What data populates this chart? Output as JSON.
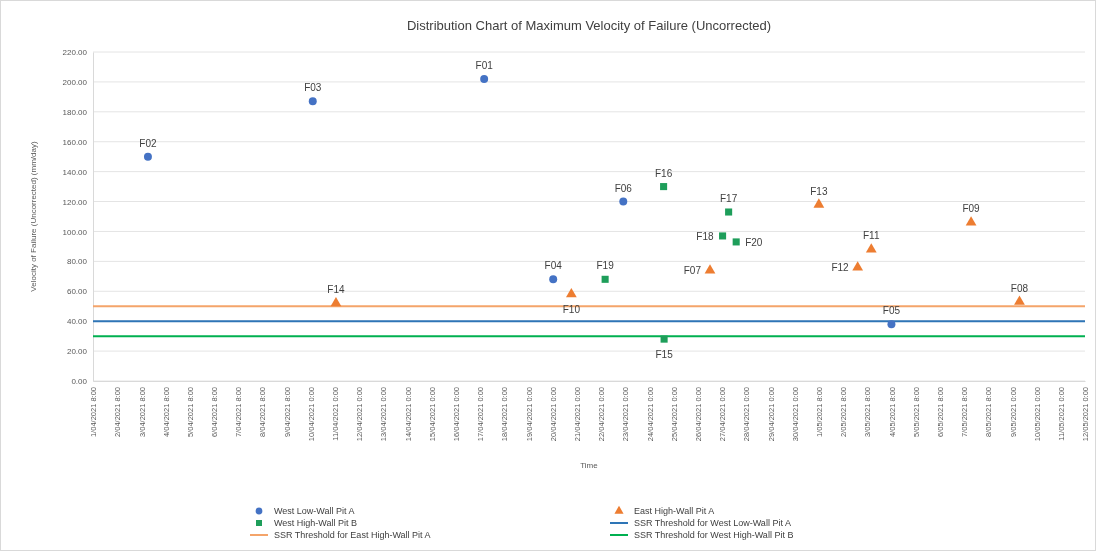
{
  "chart_data": {
    "type": "scatter",
    "title": "Distribution Chart of Maximum Velocity of Failure (Uncorrected)",
    "xlabel": "Time",
    "ylabel": "Velocity of Failure (Uncorrected) (mm/day)",
    "series": [
      {
        "name": "West Low-Wall Pit A",
        "color": "#4472c4",
        "marker": "circle",
        "x": [
          "2021-04-03T06:30",
          "2021-04-10T02:00",
          "2021-04-17T04:00",
          "2021-04-20T00:30",
          "2021-04-22T22:00",
          "2021-05-04T00:00"
        ],
        "values": [
          150,
          187,
          202,
          68,
          120,
          38
        ]
      },
      {
        "name": "East High-Wall Pit A",
        "color": "#ed7d31",
        "marker": "triangle",
        "x": [
          "2021-04-11T01:00",
          "2021-04-20T18:30",
          "2021-04-26T12:00",
          "2021-05-01T00:00",
          "2021-05-02T14:30",
          "2021-05-03T04:00",
          "2021-05-07T07:00",
          "2021-05-09T07:00"
        ],
        "values": [
          52,
          58,
          74,
          118,
          76,
          88,
          106,
          53
        ]
      },
      {
        "name": "West High-Wall Pit B",
        "color": "#1e9e5a",
        "marker": "square",
        "x": [
          "2021-04-22T04:00",
          "2021-04-24T14:00",
          "2021-04-24T14:30",
          "2021-04-27T00:30",
          "2021-04-27T06:30",
          "2021-04-27T14:00"
        ],
        "values": [
          68,
          130,
          28,
          97,
          113,
          93
        ]
      }
    ],
    "ref_lines": [
      {
        "axis": "y",
        "value": 40,
        "label": "SSR Threshold for West Low-Wall Pit A",
        "color": "#2e75b6",
        "line_style": "solid"
      },
      {
        "axis": "y",
        "value": 50,
        "label": "SSR Threshold for East High-Wall Pit A",
        "color": "#f4a46a",
        "line_style": "solid"
      },
      {
        "axis": "y",
        "value": 30,
        "label": "SSR Threshold for West High-Wall Pit B",
        "color": "#00b050",
        "line_style": "solid"
      }
    ],
    "annotations": [
      {
        "text": "F02",
        "x": "2021-04-03T06:30",
        "y": 150
      },
      {
        "text": "F03",
        "x": "2021-04-10T02:00",
        "y": 187
      },
      {
        "text": "F01",
        "x": "2021-04-17T04:00",
        "y": 202
      },
      {
        "text": "F04",
        "x": "2021-04-20T00:30",
        "y": 68
      },
      {
        "text": "F06",
        "x": "2021-04-22T22:00",
        "y": 120
      },
      {
        "text": "F05",
        "x": "2021-05-04T00:00",
        "y": 38
      },
      {
        "text": "F14",
        "x": "2021-04-11T01:00",
        "y": 52
      },
      {
        "text": "F10",
        "x": "2021-04-20T18:30",
        "y": 58
      },
      {
        "text": "F07",
        "x": "2021-04-26T12:00",
        "y": 74
      },
      {
        "text": "F13",
        "x": "2021-05-01T00:00",
        "y": 118
      },
      {
        "text": "F12",
        "x": "2021-05-02T14:30",
        "y": 76
      },
      {
        "text": "F11",
        "x": "2021-05-03T04:00",
        "y": 88
      },
      {
        "text": "F09",
        "x": "2021-05-07T07:00",
        "y": 106
      },
      {
        "text": "F08",
        "x": "2021-05-09T07:00",
        "y": 53
      },
      {
        "text": "F19",
        "x": "2021-04-22T04:00",
        "y": 68
      },
      {
        "text": "F16",
        "x": "2021-04-24T14:00",
        "y": 130
      },
      {
        "text": "F15",
        "x": "2021-04-24T14:30",
        "y": 28
      },
      {
        "text": "F18",
        "x": "2021-04-27T00:30",
        "y": 97
      },
      {
        "text": "F17",
        "x": "2021-04-27T06:30",
        "y": 113
      },
      {
        "text": "F20",
        "x": "2021-04-27T14:00",
        "y": 93
      }
    ],
    "xlim": [
      "2021-04-01",
      "2021-05-12"
    ],
    "xticks": [
      {
        "value": "2021-04-01",
        "label": "1/04/2021 8:00"
      },
      {
        "value": "2021-04-02",
        "label": "2/04/2021 8:00"
      },
      {
        "value": "2021-04-03",
        "label": "3/04/2021 8:00"
      },
      {
        "value": "2021-04-04",
        "label": "4/04/2021 8:00"
      },
      {
        "value": "2021-04-05",
        "label": "5/04/2021 8:00"
      },
      {
        "value": "2021-04-06",
        "label": "6/04/2021 8:00"
      },
      {
        "value": "2021-04-07",
        "label": "7/04/2021 8:00"
      },
      {
        "value": "2021-04-08",
        "label": "8/04/2021 8:00"
      },
      {
        "value": "2021-04-09",
        "label": "9/04/2021 8:00"
      },
      {
        "value": "2021-04-10",
        "label": "10/04/2021 0:00"
      },
      {
        "value": "2021-04-11",
        "label": "11/04/2021 0:00"
      },
      {
        "value": "2021-04-12",
        "label": "12/04/2021 0:00"
      },
      {
        "value": "2021-04-13",
        "label": "13/04/2021 0:00"
      },
      {
        "value": "2021-04-14",
        "label": "14/04/2021 0:00"
      },
      {
        "value": "2021-04-15",
        "label": "15/04/2021 0:00"
      },
      {
        "value": "2021-04-16",
        "label": "16/04/2021 0:00"
      },
      {
        "value": "2021-04-17",
        "label": "17/04/2021 0:00"
      },
      {
        "value": "2021-04-18",
        "label": "18/04/2021 0:00"
      },
      {
        "value": "2021-04-19",
        "label": "19/04/2021 0:00"
      },
      {
        "value": "2021-04-20",
        "label": "20/04/2021 0:00"
      },
      {
        "value": "2021-04-21",
        "label": "21/04/2021 0:00"
      },
      {
        "value": "2021-04-22",
        "label": "22/04/2021 0:00"
      },
      {
        "value": "2021-04-23",
        "label": "23/04/2021 0:00"
      },
      {
        "value": "2021-04-24",
        "label": "24/04/2021 0:00"
      },
      {
        "value": "2021-04-25",
        "label": "25/04/2021 0:00"
      },
      {
        "value": "2021-04-26",
        "label": "26/04/2021 0:00"
      },
      {
        "value": "2021-04-27",
        "label": "27/04/2021 0:00"
      },
      {
        "value": "2021-04-28",
        "label": "28/04/2021 0:00"
      },
      {
        "value": "2021-04-29",
        "label": "29/04/2021 0:00"
      },
      {
        "value": "2021-04-30",
        "label": "30/04/2021 0:00"
      },
      {
        "value": "2021-05-01",
        "label": "1/05/2021 8:00"
      },
      {
        "value": "2021-05-02",
        "label": "2/05/2021 8:00"
      },
      {
        "value": "2021-05-03",
        "label": "3/05/2021 8:00"
      },
      {
        "value": "2021-05-04",
        "label": "4/05/2021 8:00"
      },
      {
        "value": "2021-05-05",
        "label": "5/05/2021 8:00"
      },
      {
        "value": "2021-05-06",
        "label": "6/05/2021 8:00"
      },
      {
        "value": "2021-05-07",
        "label": "7/05/2021 8:00"
      },
      {
        "value": "2021-05-08",
        "label": "8/05/2021 8:00"
      },
      {
        "value": "2021-05-09",
        "label": "9/05/2021 0:00"
      },
      {
        "value": "2021-05-10",
        "label": "10/05/2021 0:00"
      },
      {
        "value": "2021-05-11",
        "label": "11/05/2021 0:00"
      },
      {
        "value": "2021-05-12",
        "label": "12/05/2021 0:00"
      }
    ],
    "ylim": [
      0,
      220
    ],
    "yticks": [
      {
        "value": 0,
        "label": "0.00"
      },
      {
        "value": 20,
        "label": "20.00"
      },
      {
        "value": 40,
        "label": "40.00"
      },
      {
        "value": 60,
        "label": "60.00"
      },
      {
        "value": 80,
        "label": "80.00"
      },
      {
        "value": 100,
        "label": "100.00"
      },
      {
        "value": 120,
        "label": "120.00"
      },
      {
        "value": 140,
        "label": "140.00"
      },
      {
        "value": 160,
        "label": "160.00"
      },
      {
        "value": 180,
        "label": "180.00"
      },
      {
        "value": 200,
        "label": "200.00"
      },
      {
        "value": 220,
        "label": "220.00"
      }
    ],
    "grid": "y",
    "legend": "bottom"
  }
}
